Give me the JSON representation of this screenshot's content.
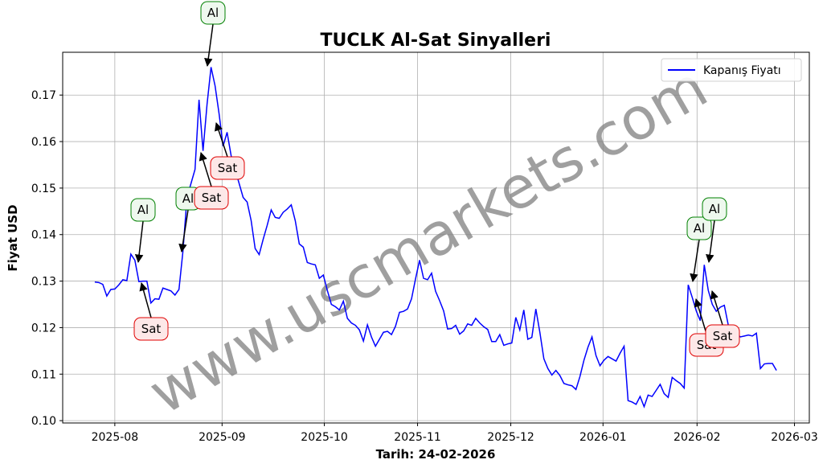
{
  "chart_data": {
    "type": "line",
    "title": "TUCLK Al-Sat Sinyalleri",
    "xlabel": "Tarih: 24-02-2026",
    "ylabel": "Fiyat USD",
    "watermark": "www.uscmarkets.com",
    "legend": "upper right",
    "grid": true,
    "series": [
      {
        "name": "Kapanış Fiyatı",
        "color": "#0000ff",
        "values": [
          0.1298,
          0.1297,
          0.1293,
          0.1268,
          0.1282,
          0.1283,
          0.1292,
          0.1303,
          0.1301,
          0.1358,
          0.1345,
          0.1299,
          0.13,
          0.13,
          0.1253,
          0.1262,
          0.1261,
          0.1285,
          0.1282,
          0.1279,
          0.127,
          0.1282,
          0.1365,
          0.148,
          0.151,
          0.154,
          0.169,
          0.158,
          0.168,
          0.176,
          0.172,
          0.166,
          0.159,
          0.162,
          0.157,
          0.154,
          0.151,
          0.148,
          0.147,
          0.143,
          0.137,
          0.1357,
          0.139,
          0.142,
          0.1453,
          0.1437,
          0.1435,
          0.1448,
          0.1455,
          0.1464,
          0.143,
          0.138,
          0.1373,
          0.134,
          0.1337,
          0.1335,
          0.1306,
          0.1313,
          0.128,
          0.125,
          0.1245,
          0.1238,
          0.1257,
          0.122,
          0.121,
          0.1205,
          0.1195,
          0.1171,
          0.1206,
          0.118,
          0.116,
          0.1175,
          0.119,
          0.1192,
          0.1185,
          0.1203,
          0.1233,
          0.1235,
          0.124,
          0.1262,
          0.1305,
          0.1345,
          0.1306,
          0.1303,
          0.1317,
          0.1278,
          0.1258,
          0.1236,
          0.1197,
          0.1198,
          0.1205,
          0.1186,
          0.1193,
          0.1208,
          0.1205,
          0.122,
          0.121,
          0.1202,
          0.1196,
          0.117,
          0.117,
          0.1185,
          0.1162,
          0.1165,
          0.1167,
          0.1222,
          0.1195,
          0.1238,
          0.1175,
          0.1179,
          0.124,
          0.119,
          0.1133,
          0.1112,
          0.1098,
          0.1108,
          0.1097,
          0.108,
          0.1077,
          0.1075,
          0.1067,
          0.1095,
          0.113,
          0.1158,
          0.118,
          0.114,
          0.1118,
          0.113,
          0.1138,
          0.1133,
          0.1128,
          0.1145,
          0.116,
          0.1043,
          0.104,
          0.1035,
          0.1052,
          0.103,
          0.1055,
          0.1052,
          0.1065,
          0.1078,
          0.1058,
          0.105,
          0.1093,
          0.1086,
          0.108,
          0.107,
          0.1292,
          0.1265,
          0.1236,
          0.1215,
          0.1335,
          0.128,
          0.125,
          0.1235,
          0.1244,
          0.1248,
          0.1205,
          0.1203,
          0.1188,
          0.118,
          0.1182,
          0.1184,
          0.1182,
          0.1188,
          0.1112,
          0.1122,
          0.1123,
          0.1123,
          0.1108
        ]
      }
    ],
    "xlim": [
      -8,
      178.2
    ],
    "xticks": [
      {
        "value": 5,
        "label": "2025-08"
      },
      {
        "value": 31.75,
        "label": "2025-09"
      },
      {
        "value": 57.25,
        "label": "2025-10"
      },
      {
        "value": 80.5,
        "label": "2025-11"
      },
      {
        "value": 103.75,
        "label": "2025-12"
      },
      {
        "value": 126.75,
        "label": "2026-01"
      },
      {
        "value": 150.2,
        "label": "2026-02"
      },
      {
        "value": 174.5,
        "label": "2026-03"
      }
    ],
    "ylim": [
      0.0995,
      0.1792
    ],
    "yticks": [
      {
        "value": 0.1,
        "label": "0.10"
      },
      0.11,
      0.12,
      0.13,
      0.14,
      0.15,
      0.16,
      0.17
    ],
    "annotations": [
      {
        "text": "Al"
      },
      {
        "text": "Sat"
      },
      {
        "text": "Al"
      },
      {
        "text": "Al"
      },
      {
        "text": "Sat"
      },
      {
        "text": "Sat"
      },
      {
        "text": "Al"
      },
      {
        "text": "Al"
      },
      {
        "text": "Sat"
      },
      {
        "text": "Sat"
      }
    ]
  }
}
